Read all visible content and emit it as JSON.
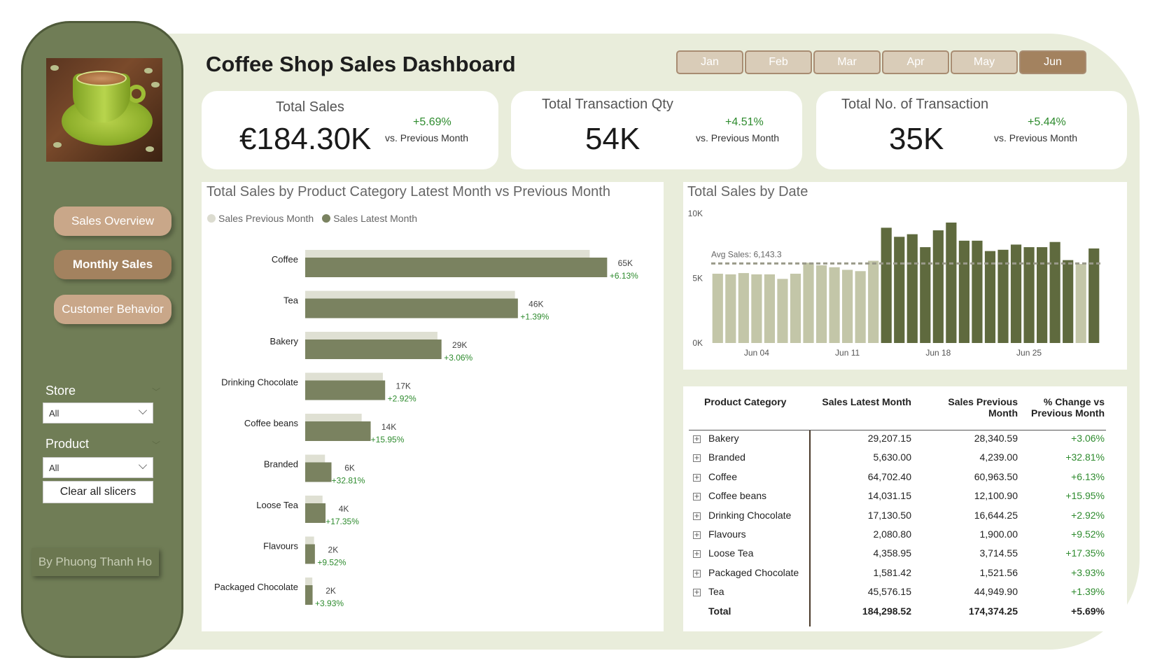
{
  "title": "Coffee Shop Sales Dashboard",
  "months": [
    {
      "label": "Jan",
      "selected": false
    },
    {
      "label": "Feb",
      "selected": false
    },
    {
      "label": "Mar",
      "selected": false
    },
    {
      "label": "Apr",
      "selected": false
    },
    {
      "label": "May",
      "selected": false
    },
    {
      "label": "Jun",
      "selected": true
    }
  ],
  "nav": {
    "sales_overview": "Sales Overview",
    "monthly_sales": "Monthly Sales",
    "customer_behavior": "Customer Behavior"
  },
  "slicers": {
    "store_label": "Store",
    "store_value": "All",
    "product_label": "Product",
    "product_value": "All",
    "clear_label": "Clear all slicers"
  },
  "author": "By Phuong Thanh Ho",
  "kpis": {
    "total_sales": {
      "label": "Total Sales",
      "value": "€184.30K",
      "change": "+5.69%",
      "vs": "vs. Previous Month"
    },
    "transaction_qty": {
      "label": "Total Transaction Qty",
      "value": "54K",
      "change": "+4.51%",
      "vs": "vs. Previous Month"
    },
    "transactions": {
      "label": "Total No. of Transaction",
      "value": "35K",
      "change": "+5.44%",
      "vs": "vs. Previous Month"
    }
  },
  "colors": {
    "olive": "#707d56",
    "bar_latest": "#7a8260",
    "bar_previous": "#dfe0d3",
    "date_light": "#c3c6a8",
    "date_dark": "#5f6a3e",
    "positive": "#2e8b2e",
    "accent_brown": "#a3825f"
  },
  "chart_data": [
    {
      "type": "bar",
      "title": "Total Sales by Product Category Latest Month vs Previous Month",
      "legend": [
        "Sales Previous Month",
        "Sales Latest Month"
      ],
      "categories": [
        "Coffee",
        "Tea",
        "Bakery",
        "Drinking Chocolate",
        "Coffee beans",
        "Branded",
        "Loose Tea",
        "Flavours",
        "Packaged Chocolate"
      ],
      "series": [
        {
          "name": "Sales Previous Month",
          "values": [
            60963.5,
            44949.9,
            28340.59,
            16644.25,
            12100.9,
            4239.0,
            3714.55,
            1900.0,
            1521.56
          ]
        },
        {
          "name": "Sales Latest Month",
          "values": [
            64702.4,
            45576.15,
            29207.15,
            17130.5,
            14031.15,
            5630.0,
            4358.95,
            2080.8,
            1581.42
          ]
        }
      ],
      "value_labels": [
        "65K",
        "46K",
        "29K",
        "17K",
        "14K",
        "6K",
        "4K",
        "2K",
        "2K"
      ],
      "change_labels": [
        "+6.13%",
        "+1.39%",
        "+3.06%",
        "+2.92%",
        "+15.95%",
        "+32.81%",
        "+17.35%",
        "+9.52%",
        "+3.93%"
      ]
    },
    {
      "type": "bar",
      "title": "Total Sales by Date",
      "ylim": [
        0,
        10000
      ],
      "y_ticks": [
        "0K",
        "5K",
        "10K"
      ],
      "x_ticks": [
        "Jun 04",
        "Jun 11",
        "Jun 18",
        "Jun 25"
      ],
      "avg_label": "Avg Sales: 6,143.3",
      "avg_value": 6143.3,
      "values": [
        5350,
        5300,
        5400,
        5300,
        5300,
        4950,
        5350,
        6200,
        6000,
        5850,
        5650,
        5550,
        6350,
        8900,
        8200,
        8400,
        7400,
        8700,
        9300,
        7900,
        7900,
        7100,
        7200,
        7600,
        7400,
        7400,
        7800,
        6400,
        6100,
        7300
      ],
      "highlight": [
        "light",
        "light",
        "light",
        "light",
        "light",
        "light",
        "light",
        "light",
        "light",
        "light",
        "light",
        "light",
        "light",
        "dark",
        "dark",
        "dark",
        "dark",
        "dark",
        "dark",
        "dark",
        "dark",
        "dark",
        "dark",
        "dark",
        "dark",
        "dark",
        "dark",
        "dark",
        "light",
        "dark"
      ]
    }
  ],
  "table": {
    "headers": [
      "Product Category",
      "Sales Latest Month",
      "Sales Previous Month",
      "% Change vs Previous Month"
    ],
    "rows": [
      {
        "category": "Bakery",
        "latest": "29,207.15",
        "previous": "28,340.59",
        "change": "+3.06%"
      },
      {
        "category": "Branded",
        "latest": "5,630.00",
        "previous": "4,239.00",
        "change": "+32.81%"
      },
      {
        "category": "Coffee",
        "latest": "64,702.40",
        "previous": "60,963.50",
        "change": "+6.13%"
      },
      {
        "category": "Coffee beans",
        "latest": "14,031.15",
        "previous": "12,100.90",
        "change": "+15.95%"
      },
      {
        "category": "Drinking Chocolate",
        "latest": "17,130.50",
        "previous": "16,644.25",
        "change": "+2.92%"
      },
      {
        "category": "Flavours",
        "latest": "2,080.80",
        "previous": "1,900.00",
        "change": "+9.52%"
      },
      {
        "category": "Loose Tea",
        "latest": "4,358.95",
        "previous": "3,714.55",
        "change": "+17.35%"
      },
      {
        "category": "Packaged Chocolate",
        "latest": "1,581.42",
        "previous": "1,521.56",
        "change": "+3.93%"
      },
      {
        "category": "Tea",
        "latest": "45,576.15",
        "previous": "44,949.90",
        "change": "+1.39%"
      }
    ],
    "total": {
      "category": "Total",
      "latest": "184,298.52",
      "previous": "174,374.25",
      "change": "+5.69%"
    }
  }
}
